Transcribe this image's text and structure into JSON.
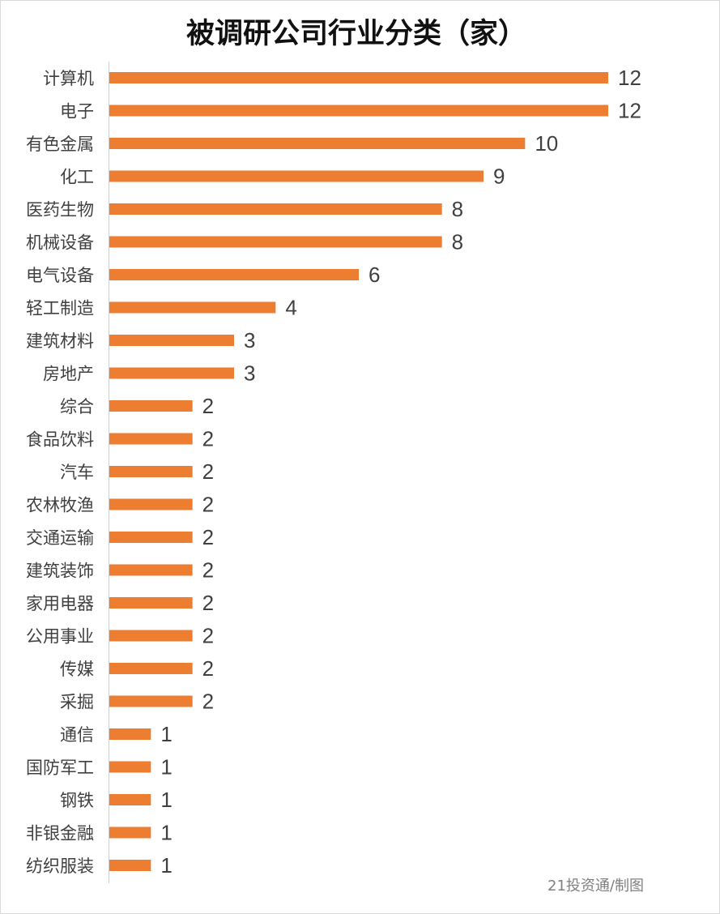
{
  "chart_data": {
    "type": "bar",
    "orientation": "horizontal",
    "title": "被调研公司行业分类（家）",
    "categories": [
      "计算机",
      "电子",
      "有色金属",
      "化工",
      "医药生物",
      "机械设备",
      "电气设备",
      "轻工制造",
      "建筑材料",
      "房地产",
      "综合",
      "食品饮料",
      "汽车",
      "农林牧渔",
      "交通运输",
      "建筑装饰",
      "家用电器",
      "公用事业",
      "传媒",
      "采掘",
      "通信",
      "国防军工",
      "钢铁",
      "非银金融",
      "纺织服装"
    ],
    "values": [
      12,
      12,
      10,
      9,
      8,
      8,
      6,
      4,
      3,
      3,
      2,
      2,
      2,
      2,
      2,
      2,
      2,
      2,
      2,
      2,
      1,
      1,
      1,
      1,
      1
    ],
    "xlim": [
      0,
      12
    ],
    "grid": false,
    "data_labels": true,
    "bar_color": "#ED7D31",
    "credit": "21投资通/制图"
  }
}
